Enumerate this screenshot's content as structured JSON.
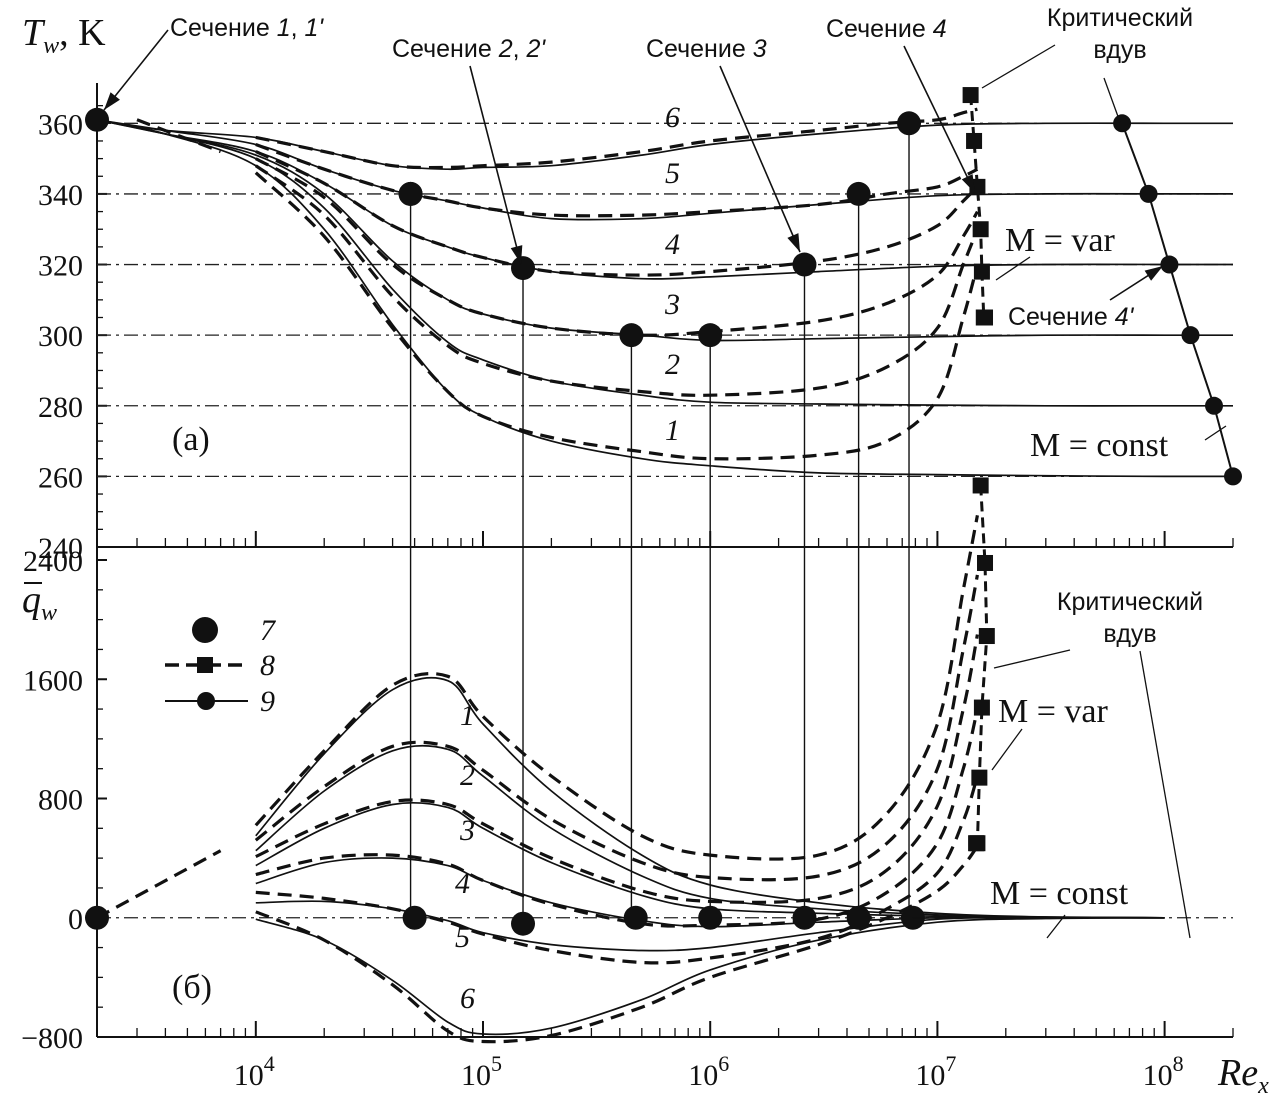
{
  "chart_data": [
    {
      "panel": "a",
      "panel_label": "(a)",
      "type": "line",
      "x_scale": "log",
      "xlim": [
        2000,
        200000000
      ],
      "x_ticks": [
        10000,
        100000,
        1000000,
        10000000,
        100000000
      ],
      "ylabel_main": "T",
      "ylabel_sub": "w",
      "ylabel_unit": ", K",
      "ylim": [
        240,
        370
      ],
      "y_ticks": [
        "240",
        "260",
        "280",
        "300",
        "320",
        "340",
        "360"
      ],
      "reference_levels": [
        360,
        340,
        320,
        300,
        280,
        260
      ],
      "series": [
        {
          "name": "1",
          "style": "solid",
          "x": [
            2000,
            4000,
            10000,
            20000,
            40000,
            70000,
            100000,
            200000,
            500000,
            1000000,
            3000000,
            10000000,
            30000000,
            100000000,
            200000000
          ],
          "y": [
            361,
            357,
            348,
            330,
            303,
            284,
            277,
            270,
            265,
            263,
            261,
            260.5,
            260.2,
            260,
            260
          ]
        },
        {
          "name": "2",
          "style": "solid",
          "x": [
            2000,
            4000,
            10000,
            20000,
            40000,
            70000,
            100000,
            200000,
            500000,
            1000000,
            3000000,
            10000000,
            30000000,
            100000000,
            200000000
          ],
          "y": [
            361,
            357,
            350,
            336,
            313,
            298,
            293,
            287,
            283,
            281,
            280.5,
            280.2,
            280,
            280,
            280
          ]
        },
        {
          "name": "3",
          "style": "solid",
          "x": [
            2000,
            4000,
            10000,
            20000,
            40000,
            70000,
            100000,
            200000,
            500000,
            1000000,
            3000000,
            10000000,
            30000000,
            100000000,
            200000000
          ],
          "y": [
            361,
            357,
            351,
            340,
            321,
            310,
            306,
            302,
            300,
            298.5,
            299,
            299.6,
            300,
            300,
            300
          ]
        },
        {
          "name": "4",
          "style": "solid",
          "x": [
            2000,
            4000,
            10000,
            20000,
            40000,
            70000,
            100000,
            200000,
            500000,
            1000000,
            3000000,
            10000000,
            30000000,
            100000000,
            200000000
          ],
          "y": [
            361,
            357,
            352,
            343,
            331,
            325,
            322,
            318,
            316,
            316.5,
            318,
            319.5,
            320,
            320,
            320
          ]
        },
        {
          "name": "5",
          "style": "solid",
          "x": [
            2000,
            4000,
            10000,
            20000,
            40000,
            70000,
            100000,
            200000,
            500000,
            1000000,
            3000000,
            10000000,
            30000000,
            100000000,
            200000000
          ],
          "y": [
            361,
            358,
            354,
            347,
            341,
            338,
            336,
            333,
            333,
            334.5,
            337,
            339.5,
            340,
            340,
            340
          ]
        },
        {
          "name": "6",
          "style": "solid",
          "x": [
            2000,
            4000,
            10000,
            20000,
            40000,
            70000,
            100000,
            200000,
            500000,
            1000000,
            3000000,
            10000000,
            30000000,
            100000000,
            200000000
          ],
          "y": [
            361,
            358,
            356,
            352,
            348,
            347,
            347.5,
            348,
            351,
            354,
            357,
            359.5,
            360,
            360,
            360
          ]
        },
        {
          "name": "1",
          "style": "dashed",
          "x": [
            10000,
            20000,
            40000,
            70000,
            100000,
            200000,
            500000,
            1000000,
            3000000,
            6000000,
            10000000,
            13000000,
            15000000
          ],
          "y": [
            346,
            328,
            302,
            284,
            277,
            271,
            267,
            265,
            266,
            270,
            282,
            305,
            320
          ]
        },
        {
          "name": "2",
          "style": "dashed",
          "x": [
            10000,
            20000,
            40000,
            70000,
            100000,
            200000,
            500000,
            1000000,
            3000000,
            6000000,
            10000000,
            13000000,
            15000000
          ],
          "y": [
            348,
            334,
            311,
            297,
            292,
            287,
            284,
            283,
            285,
            291,
            302,
            320,
            330
          ]
        },
        {
          "name": "3",
          "style": "dashed",
          "x": [
            10000,
            20000,
            40000,
            70000,
            100000,
            200000,
            500000,
            1000000,
            3000000,
            6000000,
            10000000,
            13000000,
            15000000
          ],
          "y": [
            350,
            339,
            320,
            310,
            306,
            302,
            300,
            301,
            304,
            309,
            317,
            328,
            335
          ]
        },
        {
          "name": "4",
          "style": "dashed",
          "x": [
            10000,
            20000,
            40000,
            70000,
            100000,
            200000,
            500000,
            1000000,
            3000000,
            6000000,
            10000000,
            13000000,
            15000000
          ],
          "y": [
            352,
            343,
            331,
            325,
            322,
            318,
            317,
            318,
            321,
            325,
            331,
            338,
            342
          ]
        },
        {
          "name": "5",
          "style": "dashed",
          "x": [
            10000,
            20000,
            40000,
            70000,
            100000,
            200000,
            500000,
            1000000,
            3000000,
            6000000,
            10000000,
            13000000,
            15000000
          ],
          "y": [
            354,
            347,
            341,
            338,
            336,
            334,
            334,
            335,
            337,
            340,
            342,
            345,
            347
          ]
        },
        {
          "name": "6",
          "style": "dashed",
          "x": [
            10000,
            20000,
            40000,
            70000,
            100000,
            200000,
            500000,
            1000000,
            3000000,
            6000000,
            10000000,
            13000000,
            15000000
          ],
          "y": [
            356,
            352,
            348,
            347.5,
            348,
            349,
            352,
            355,
            358,
            360,
            361,
            363,
            364
          ]
        },
        {
          "name": "upstream dashed",
          "style": "dashed",
          "x": [
            3000,
            7000
          ],
          "y": [
            361,
            352
          ]
        }
      ],
      "points_7": {
        "x": [
          2000,
          48000,
          48000,
          150000,
          450000,
          1000000,
          2600000,
          4500000,
          7500000
        ],
        "y": [
          361,
          340,
          340,
          319,
          300,
          300,
          320,
          340,
          360
        ]
      },
      "points_8_mvar": {
        "x": [
          14000000,
          14500000,
          15000000,
          15500000,
          15700000,
          16000000,
          16200000
        ],
        "y": [
          368,
          355,
          342,
          330,
          318,
          305,
          305
        ]
      },
      "points_9_mconst": {
        "x": [
          65000000,
          85000000,
          105000000,
          130000000,
          165000000,
          200000000
        ],
        "y": [
          360,
          340,
          320,
          300,
          280,
          260
        ]
      },
      "curve_labels": [
        "1",
        "2",
        "3",
        "4",
        "5",
        "6"
      ],
      "annotations": {
        "section_1": {
          "text": "Сечение ",
          "italic": "1",
          "sep": ", ",
          "italic2": "1'"
        },
        "section_2": {
          "text": "Сечение ",
          "italic": "2",
          "sep": ", ",
          "italic2": "2'"
        },
        "section_3": {
          "text": "Сечение ",
          "italic": "3"
        },
        "section_4": {
          "text": "Сечение ",
          "italic": "4"
        },
        "section_4p": {
          "text": "Сечение ",
          "italic": "4'"
        },
        "critical_line1": "Критический",
        "critical_line2": "вдув",
        "m_var": "M = var",
        "m_const": "M = const"
      }
    },
    {
      "panel": "b",
      "panel_label": "(б)",
      "type": "line",
      "x_scale": "log",
      "xlim": [
        2000,
        200000000
      ],
      "x_ticks": [
        10000,
        100000,
        1000000,
        10000000,
        100000000
      ],
      "xlabel_main": "Re",
      "xlabel_sub": "x",
      "ylabel_main": "q",
      "ylabel_sub": "w",
      "ylim": [
        -800,
        2400
      ],
      "y_ticks": [
        "−800",
        "0",
        "800",
        "1600",
        "2400"
      ],
      "series": [
        {
          "name": "1",
          "style": "solid",
          "x": [
            10000,
            20000,
            40000,
            70000,
            100000,
            200000,
            500000,
            1000000,
            3000000,
            10000000,
            30000000,
            100000000
          ],
          "y": [
            550,
            1100,
            1530,
            1590,
            1300,
            850,
            420,
            220,
            100,
            30,
            5,
            0
          ]
        },
        {
          "name": "2",
          "style": "solid",
          "x": [
            10000,
            20000,
            40000,
            70000,
            100000,
            200000,
            500000,
            1000000,
            3000000,
            10000000,
            30000000,
            100000000
          ],
          "y": [
            450,
            850,
            1120,
            1130,
            950,
            600,
            280,
            130,
            60,
            20,
            5,
            0
          ]
        },
        {
          "name": "3",
          "style": "solid",
          "x": [
            10000,
            20000,
            40000,
            70000,
            100000,
            200000,
            500000,
            1000000,
            3000000,
            10000000,
            30000000,
            100000000
          ],
          "y": [
            350,
            600,
            760,
            740,
            600,
            370,
            150,
            60,
            30,
            10,
            3,
            0
          ]
        },
        {
          "name": "4",
          "style": "solid",
          "x": [
            10000,
            20000,
            40000,
            70000,
            100000,
            200000,
            500000,
            1000000,
            3000000,
            10000000,
            30000000,
            100000000
          ],
          "y": [
            230,
            370,
            400,
            350,
            250,
            100,
            -20,
            -60,
            -30,
            0,
            2,
            0
          ]
        },
        {
          "name": "5",
          "style": "solid",
          "x": [
            10000,
            20000,
            40000,
            70000,
            100000,
            200000,
            500000,
            1000000,
            3000000,
            10000000,
            30000000,
            100000000
          ],
          "y": [
            100,
            110,
            60,
            -20,
            -100,
            -180,
            -220,
            -200,
            -100,
            -10,
            0,
            0
          ]
        },
        {
          "name": "6",
          "style": "solid",
          "x": [
            10000,
            20000,
            40000,
            70000,
            100000,
            200000,
            500000,
            1000000,
            3000000,
            10000000,
            30000000,
            100000000
          ],
          "y": [
            -10,
            -150,
            -420,
            -700,
            -780,
            -740,
            -550,
            -350,
            -150,
            -30,
            -5,
            0
          ]
        },
        {
          "name": "1",
          "style": "dashed",
          "x": [
            10000,
            20000,
            40000,
            70000,
            100000,
            200000,
            500000,
            1000000,
            3000000,
            6000000,
            10000000,
            13000000,
            15000000
          ],
          "y": [
            620,
            1120,
            1560,
            1620,
            1350,
            950,
            550,
            420,
            420,
            700,
            1300,
            2200,
            2700
          ]
        },
        {
          "name": "2",
          "style": "dashed",
          "x": [
            10000,
            20000,
            40000,
            70000,
            100000,
            200000,
            500000,
            1000000,
            3000000,
            6000000,
            10000000,
            13000000,
            15000000
          ],
          "y": [
            520,
            880,
            1150,
            1150,
            990,
            660,
            370,
            270,
            280,
            500,
            1000,
            1800,
            2300
          ]
        },
        {
          "name": "3",
          "style": "dashed",
          "x": [
            10000,
            20000,
            40000,
            70000,
            100000,
            200000,
            500000,
            1000000,
            3000000,
            6000000,
            10000000,
            13000000,
            15000000
          ],
          "y": [
            410,
            630,
            780,
            760,
            630,
            400,
            180,
            110,
            130,
            320,
            750,
            1400,
            1900
          ]
        },
        {
          "name": "4",
          "style": "dashed",
          "x": [
            10000,
            20000,
            40000,
            70000,
            100000,
            200000,
            500000,
            1000000,
            3000000,
            6000000,
            10000000,
            13000000,
            15000000
          ],
          "y": [
            290,
            400,
            420,
            360,
            250,
            90,
            -40,
            -50,
            -10,
            170,
            500,
            1000,
            1400
          ]
        },
        {
          "name": "5",
          "style": "dashed",
          "x": [
            10000,
            20000,
            40000,
            70000,
            100000,
            200000,
            500000,
            1000000,
            3000000,
            6000000,
            10000000,
            13000000,
            15000000
          ],
          "y": [
            170,
            130,
            60,
            -30,
            -110,
            -220,
            -300,
            -270,
            -140,
            60,
            300,
            650,
            950
          ]
        },
        {
          "name": "6",
          "style": "dashed",
          "x": [
            10000,
            20000,
            40000,
            70000,
            100000,
            200000,
            500000,
            1000000,
            3000000,
            6000000,
            10000000,
            13000000,
            15000000
          ],
          "y": [
            40,
            -150,
            -450,
            -760,
            -830,
            -790,
            -600,
            -400,
            -180,
            0,
            180,
            350,
            480
          ]
        },
        {
          "name": "upstream dashed",
          "style": "dashed",
          "x": [
            2000,
            7000
          ],
          "y": [
            0,
            450
          ]
        }
      ],
      "points_7": {
        "x": [
          2000,
          50000,
          150000,
          470000,
          1000000,
          2600000,
          4500000,
          7800000
        ],
        "y": [
          0,
          0,
          -40,
          0,
          0,
          0,
          0,
          0
        ]
      },
      "points_8_mvar": {
        "x": [
          15500000,
          16200000,
          16500000,
          15700000,
          15300000,
          15000000,
          14800000
        ],
        "y": [
          2900,
          2380,
          1890,
          1410,
          940,
          500,
          500
        ]
      },
      "legend": [
        {
          "marker": "circle-large",
          "label": "7"
        },
        {
          "marker": "dashed-square",
          "label": "8"
        },
        {
          "marker": "solid-circle",
          "label": "9"
        }
      ],
      "curve_labels": [
        "1",
        "2",
        "3",
        "4",
        "5",
        "6"
      ],
      "annotations": {
        "critical_line1": "Критический",
        "critical_line2": "вдув",
        "m_var": "M = var",
        "m_const": "M = const"
      }
    }
  ]
}
